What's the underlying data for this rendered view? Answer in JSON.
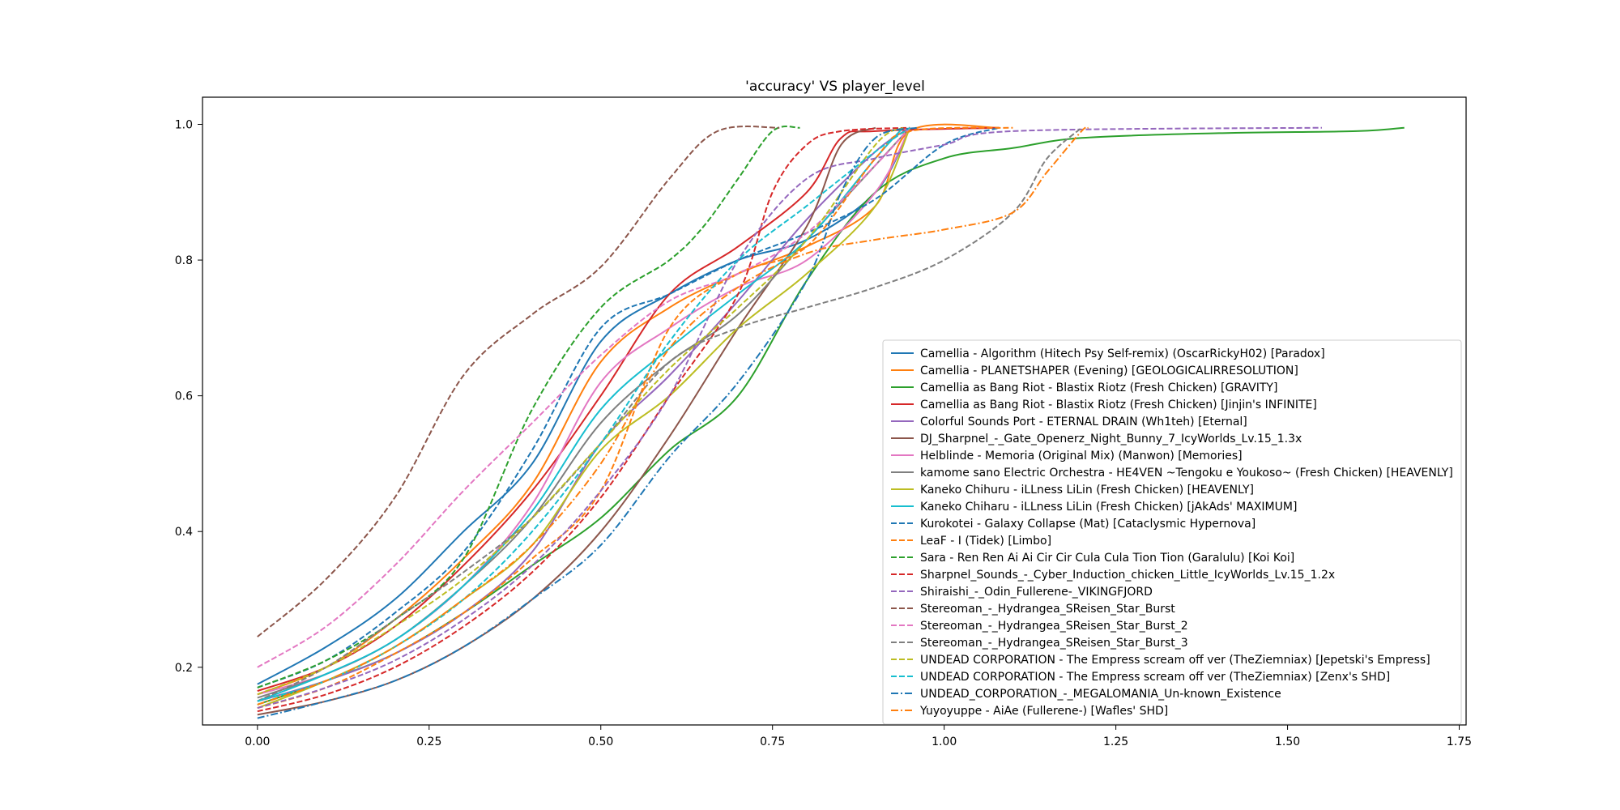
{
  "chart_data": {
    "type": "line",
    "title": "'accuracy' VS player_level",
    "xlabel": "",
    "ylabel": "",
    "xlim": [
      -0.08,
      1.76
    ],
    "ylim": [
      0.115,
      1.04
    ],
    "xticks": [
      "0.00",
      "0.25",
      "0.50",
      "0.75",
      "1.00",
      "1.25",
      "1.50",
      "1.75"
    ],
    "yticks": [
      "0.2",
      "0.4",
      "0.6",
      "0.8",
      "1.0"
    ],
    "grid": false,
    "legend_position": "lower-right",
    "series": [
      {
        "name": "Camellia - Algorithm (Hitech Psy Self-remix) (OscarRickyH02) [Paradox]",
        "color": "#1f77b4",
        "dash": "solid",
        "points": [
          [
            0,
            0.175
          ],
          [
            0.1,
            0.23
          ],
          [
            0.2,
            0.3
          ],
          [
            0.3,
            0.4
          ],
          [
            0.4,
            0.5
          ],
          [
            0.5,
            0.68
          ],
          [
            0.6,
            0.75
          ],
          [
            0.7,
            0.8
          ],
          [
            0.8,
            0.83
          ],
          [
            0.9,
            0.9
          ],
          [
            0.95,
            0.995
          ]
        ]
      },
      {
        "name": "Camellia - PLANETSHAPER (Evening) [GEOLOGICALIRRESOLUTION]",
        "color": "#ff7f0e",
        "dash": "solid",
        "points": [
          [
            0,
            0.16
          ],
          [
            0.1,
            0.2
          ],
          [
            0.2,
            0.27
          ],
          [
            0.3,
            0.36
          ],
          [
            0.4,
            0.47
          ],
          [
            0.5,
            0.65
          ],
          [
            0.6,
            0.73
          ],
          [
            0.7,
            0.78
          ],
          [
            0.8,
            0.82
          ],
          [
            0.9,
            0.88
          ],
          [
            0.95,
            0.99
          ],
          [
            1.08,
            0.995
          ]
        ]
      },
      {
        "name": "Camellia as Bang Riot - Blastix Riotz (Fresh Chicken) [GRAVITY]",
        "color": "#2ca02c",
        "dash": "solid",
        "points": [
          [
            0,
            0.145
          ],
          [
            0.1,
            0.18
          ],
          [
            0.2,
            0.22
          ],
          [
            0.3,
            0.28
          ],
          [
            0.4,
            0.35
          ],
          [
            0.5,
            0.42
          ],
          [
            0.6,
            0.52
          ],
          [
            0.7,
            0.6
          ],
          [
            0.8,
            0.77
          ],
          [
            0.9,
            0.9
          ],
          [
            1.0,
            0.95
          ],
          [
            1.1,
            0.965
          ],
          [
            1.2,
            0.98
          ],
          [
            1.4,
            0.987
          ],
          [
            1.6,
            0.99
          ],
          [
            1.67,
            0.995
          ]
        ]
      },
      {
        "name": "Camellia as Bang Riot - Blastix Riotz (Fresh Chicken) [Jinjin's INFINITE]",
        "color": "#d62728",
        "dash": "solid",
        "points": [
          [
            0,
            0.165
          ],
          [
            0.1,
            0.2
          ],
          [
            0.2,
            0.26
          ],
          [
            0.3,
            0.35
          ],
          [
            0.4,
            0.46
          ],
          [
            0.5,
            0.6
          ],
          [
            0.6,
            0.75
          ],
          [
            0.7,
            0.82
          ],
          [
            0.8,
            0.9
          ],
          [
            0.85,
            0.98
          ],
          [
            0.9,
            0.99
          ],
          [
            1.08,
            0.995
          ]
        ]
      },
      {
        "name": "Colorful Sounds Port - ETERNAL DRAIN (Wh1teh) [Eternal]",
        "color": "#9467bd",
        "dash": "solid",
        "points": [
          [
            0,
            0.15
          ],
          [
            0.1,
            0.18
          ],
          [
            0.2,
            0.22
          ],
          [
            0.3,
            0.28
          ],
          [
            0.4,
            0.37
          ],
          [
            0.5,
            0.53
          ],
          [
            0.6,
            0.63
          ],
          [
            0.7,
            0.74
          ],
          [
            0.8,
            0.86
          ],
          [
            0.9,
            0.96
          ],
          [
            0.95,
            0.995
          ]
        ]
      },
      {
        "name": "DJ_Sharpnel_-_Gate_Openerz_Night_Bunny_7_IcyWorlds_Lv.15_1.3x",
        "color": "#8c564b",
        "dash": "solid",
        "points": [
          [
            0,
            0.13
          ],
          [
            0.1,
            0.15
          ],
          [
            0.2,
            0.18
          ],
          [
            0.3,
            0.23
          ],
          [
            0.4,
            0.3
          ],
          [
            0.5,
            0.4
          ],
          [
            0.6,
            0.54
          ],
          [
            0.7,
            0.7
          ],
          [
            0.8,
            0.85
          ],
          [
            0.85,
            0.97
          ],
          [
            0.9,
            0.995
          ]
        ]
      },
      {
        "name": "Helblinde - Memoria (Original Mix) (Manwon) [Memories]",
        "color": "#e377c2",
        "dash": "solid",
        "points": [
          [
            0,
            0.16
          ],
          [
            0.1,
            0.19
          ],
          [
            0.2,
            0.24
          ],
          [
            0.3,
            0.32
          ],
          [
            0.4,
            0.44
          ],
          [
            0.5,
            0.62
          ],
          [
            0.6,
            0.7
          ],
          [
            0.7,
            0.76
          ],
          [
            0.8,
            0.8
          ],
          [
            0.9,
            0.9
          ],
          [
            0.95,
            0.995
          ]
        ]
      },
      {
        "name": "kamome sano Electric Orchestra - HE4VEN ~Tengoku e Youkoso~ (Fresh Chicken) [HEAVENLY]",
        "color": "#7f7f7f",
        "dash": "solid",
        "points": [
          [
            0,
            0.155
          ],
          [
            0.1,
            0.19
          ],
          [
            0.2,
            0.24
          ],
          [
            0.3,
            0.32
          ],
          [
            0.4,
            0.42
          ],
          [
            0.5,
            0.56
          ],
          [
            0.6,
            0.65
          ],
          [
            0.7,
            0.72
          ],
          [
            0.8,
            0.83
          ],
          [
            0.9,
            0.94
          ],
          [
            0.95,
            0.995
          ]
        ]
      },
      {
        "name": "Kaneko Chihuru - iLLness LiLin (Fresh Chicken) [HEAVENLY]",
        "color": "#bcbd22",
        "dash": "solid",
        "points": [
          [
            0,
            0.14
          ],
          [
            0.1,
            0.18
          ],
          [
            0.2,
            0.23
          ],
          [
            0.3,
            0.3
          ],
          [
            0.4,
            0.38
          ],
          [
            0.5,
            0.52
          ],
          [
            0.6,
            0.6
          ],
          [
            0.7,
            0.7
          ],
          [
            0.8,
            0.78
          ],
          [
            0.9,
            0.88
          ],
          [
            0.95,
            0.995
          ]
        ]
      },
      {
        "name": "Kaneko Chiharu - iLLness LiLin (Fresh Chicken) [jAkAds' MAXIMUM]",
        "color": "#17becf",
        "dash": "solid",
        "points": [
          [
            0,
            0.15
          ],
          [
            0.1,
            0.19
          ],
          [
            0.2,
            0.24
          ],
          [
            0.3,
            0.32
          ],
          [
            0.4,
            0.43
          ],
          [
            0.5,
            0.58
          ],
          [
            0.6,
            0.67
          ],
          [
            0.7,
            0.75
          ],
          [
            0.8,
            0.83
          ],
          [
            0.9,
            0.95
          ],
          [
            0.94,
            0.995
          ]
        ]
      },
      {
        "name": "Kurokotei - Galaxy Collapse (Mat) [Cataclysmic Hypernova]",
        "color": "#1f77b4",
        "dash": "dashed",
        "points": [
          [
            0,
            0.17
          ],
          [
            0.1,
            0.21
          ],
          [
            0.2,
            0.28
          ],
          [
            0.3,
            0.37
          ],
          [
            0.4,
            0.52
          ],
          [
            0.5,
            0.7
          ],
          [
            0.6,
            0.75
          ],
          [
            0.7,
            0.8
          ],
          [
            0.8,
            0.84
          ],
          [
            0.9,
            0.89
          ],
          [
            1.0,
            0.97
          ],
          [
            1.08,
            0.995
          ]
        ]
      },
      {
        "name": "LeaF - I (Tidek) [Limbo]",
        "color": "#ff7f0e",
        "dash": "dashed",
        "points": [
          [
            0,
            0.14
          ],
          [
            0.1,
            0.17
          ],
          [
            0.2,
            0.22
          ],
          [
            0.3,
            0.28
          ],
          [
            0.4,
            0.36
          ],
          [
            0.5,
            0.46
          ],
          [
            0.6,
            0.7
          ],
          [
            0.7,
            0.78
          ],
          [
            0.8,
            0.82
          ],
          [
            0.9,
            0.95
          ],
          [
            0.95,
            0.99
          ],
          [
            1.1,
            0.995
          ]
        ]
      },
      {
        "name": "Sara - Ren Ren Ai Ai Cir Cir Cula Cula Tion Tion (Garalulu) [Koi Koi]",
        "color": "#2ca02c",
        "dash": "dashed",
        "points": [
          [
            0,
            0.17
          ],
          [
            0.1,
            0.21
          ],
          [
            0.2,
            0.27
          ],
          [
            0.3,
            0.36
          ],
          [
            0.4,
            0.58
          ],
          [
            0.5,
            0.73
          ],
          [
            0.6,
            0.8
          ],
          [
            0.65,
            0.85
          ],
          [
            0.7,
            0.92
          ],
          [
            0.75,
            0.99
          ],
          [
            0.79,
            0.995
          ]
        ]
      },
      {
        "name": "Sharpnel_Sounds_-_Cyber_Induction_chicken_Little_IcyWorlds_Lv.15_1.2x",
        "color": "#d62728",
        "dash": "dashed",
        "points": [
          [
            0,
            0.135
          ],
          [
            0.1,
            0.16
          ],
          [
            0.2,
            0.2
          ],
          [
            0.3,
            0.26
          ],
          [
            0.4,
            0.34
          ],
          [
            0.5,
            0.45
          ],
          [
            0.6,
            0.6
          ],
          [
            0.7,
            0.75
          ],
          [
            0.75,
            0.9
          ],
          [
            0.8,
            0.97
          ],
          [
            0.85,
            0.99
          ],
          [
            0.95,
            0.995
          ]
        ]
      },
      {
        "name": "Shiraishi_-_Odin_Fullerene-_VIKINGFJORD",
        "color": "#9467bd",
        "dash": "dashed",
        "points": [
          [
            0,
            0.14
          ],
          [
            0.1,
            0.17
          ],
          [
            0.2,
            0.21
          ],
          [
            0.3,
            0.27
          ],
          [
            0.4,
            0.35
          ],
          [
            0.5,
            0.46
          ],
          [
            0.6,
            0.6
          ],
          [
            0.7,
            0.8
          ],
          [
            0.8,
            0.92
          ],
          [
            0.9,
            0.95
          ],
          [
            1.0,
            0.97
          ],
          [
            1.1,
            0.99
          ],
          [
            1.55,
            0.995
          ]
        ]
      },
      {
        "name": "Stereoman_-_Hydrangea_SReisen_Star_Burst",
        "color": "#8c564b",
        "dash": "dashed",
        "points": [
          [
            0,
            0.245
          ],
          [
            0.1,
            0.33
          ],
          [
            0.2,
            0.45
          ],
          [
            0.3,
            0.63
          ],
          [
            0.4,
            0.72
          ],
          [
            0.5,
            0.79
          ],
          [
            0.6,
            0.92
          ],
          [
            0.67,
            0.99
          ],
          [
            0.76,
            0.995
          ]
        ]
      },
      {
        "name": "Stereoman_-_Hydrangea_SReisen_Star_Burst_2",
        "color": "#e377c2",
        "dash": "dashed",
        "points": [
          [
            0,
            0.2
          ],
          [
            0.1,
            0.26
          ],
          [
            0.2,
            0.35
          ],
          [
            0.3,
            0.46
          ],
          [
            0.4,
            0.56
          ],
          [
            0.5,
            0.66
          ],
          [
            0.6,
            0.74
          ],
          [
            0.7,
            0.78
          ],
          [
            0.8,
            0.84
          ],
          [
            0.9,
            0.94
          ],
          [
            0.95,
            0.995
          ]
        ]
      },
      {
        "name": "Stereoman_-_Hydrangea_SReisen_Star_Burst_3",
        "color": "#7f7f7f",
        "dash": "dashed",
        "points": [
          [
            0,
            0.15
          ],
          [
            0.1,
            0.2
          ],
          [
            0.2,
            0.27
          ],
          [
            0.3,
            0.34
          ],
          [
            0.4,
            0.42
          ],
          [
            0.5,
            0.53
          ],
          [
            0.6,
            0.65
          ],
          [
            0.7,
            0.7
          ],
          [
            0.8,
            0.73
          ],
          [
            0.9,
            0.76
          ],
          [
            1.0,
            0.8
          ],
          [
            1.1,
            0.87
          ],
          [
            1.15,
            0.95
          ],
          [
            1.2,
            0.995
          ]
        ]
      },
      {
        "name": "UNDEAD CORPORATION - The Empress scream off ver (TheZiemniax) [Jepetski's Empress]",
        "color": "#bcbd22",
        "dash": "dashed",
        "points": [
          [
            0,
            0.16
          ],
          [
            0.1,
            0.2
          ],
          [
            0.2,
            0.26
          ],
          [
            0.3,
            0.33
          ],
          [
            0.4,
            0.42
          ],
          [
            0.5,
            0.53
          ],
          [
            0.6,
            0.64
          ],
          [
            0.7,
            0.73
          ],
          [
            0.8,
            0.83
          ],
          [
            0.9,
            0.97
          ],
          [
            0.94,
            0.995
          ]
        ]
      },
      {
        "name": "UNDEAD CORPORATION - The Empress scream off ver (TheZiemniax) [Zenx's SHD]",
        "color": "#17becf",
        "dash": "dashed",
        "points": [
          [
            0,
            0.15
          ],
          [
            0.1,
            0.18
          ],
          [
            0.2,
            0.23
          ],
          [
            0.3,
            0.3
          ],
          [
            0.4,
            0.4
          ],
          [
            0.5,
            0.53
          ],
          [
            0.6,
            0.68
          ],
          [
            0.7,
            0.8
          ],
          [
            0.8,
            0.88
          ],
          [
            0.9,
            0.96
          ],
          [
            0.95,
            0.995
          ]
        ]
      },
      {
        "name": "UNDEAD_CORPORATION_-_MEGALOMANIA_Un-known_Existence",
        "color": "#1f77b4",
        "dash": "dashdot",
        "points": [
          [
            0,
            0.125
          ],
          [
            0.1,
            0.15
          ],
          [
            0.2,
            0.18
          ],
          [
            0.3,
            0.23
          ],
          [
            0.4,
            0.3
          ],
          [
            0.5,
            0.38
          ],
          [
            0.6,
            0.51
          ],
          [
            0.7,
            0.62
          ],
          [
            0.8,
            0.77
          ],
          [
            0.85,
            0.9
          ],
          [
            0.9,
            0.98
          ],
          [
            0.96,
            0.995
          ]
        ]
      },
      {
        "name": "Yuyoyuppe - AiAe (Fullerene-) [Wafles' SHD]",
        "color": "#ff7f0e",
        "dash": "dashdot",
        "points": [
          [
            0,
            0.145
          ],
          [
            0.1,
            0.18
          ],
          [
            0.2,
            0.23
          ],
          [
            0.3,
            0.3
          ],
          [
            0.4,
            0.38
          ],
          [
            0.5,
            0.5
          ],
          [
            0.6,
            0.67
          ],
          [
            0.7,
            0.76
          ],
          [
            0.8,
            0.81
          ],
          [
            0.9,
            0.83
          ],
          [
            1.0,
            0.845
          ],
          [
            1.1,
            0.87
          ],
          [
            1.15,
            0.93
          ],
          [
            1.2,
            0.99
          ],
          [
            1.21,
            0.995
          ]
        ]
      }
    ]
  }
}
